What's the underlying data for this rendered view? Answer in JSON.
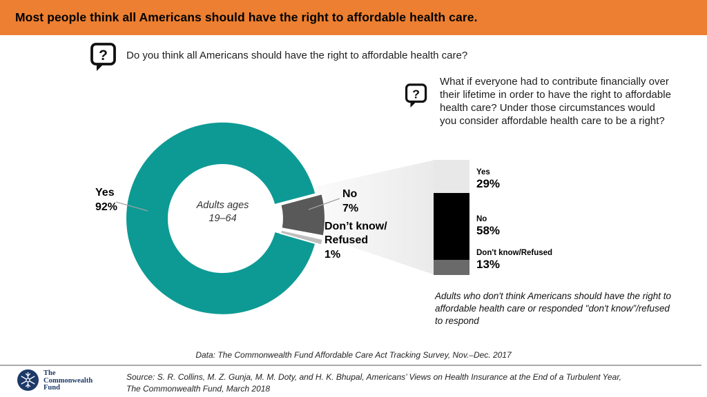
{
  "header": {
    "title": "Most people think all Americans should have the right to affordable health care.",
    "accent_color": "#EC7F31"
  },
  "questions": {
    "icon_glyph": "?",
    "q1": "Do you think all Americans should have the right to affordable health care?",
    "q2": "What if everyone had to contribute financially over their lifetime in order to have the right to affordable health care? Under those circumstances would you consider affordable health care to be a right?"
  },
  "chart_data": [
    {
      "type": "pie",
      "subtype": "donut",
      "center_line1": "Adults ages",
      "center_line2": "19–64",
      "categories": [
        "Yes",
        "No",
        "Don’t know/Refused"
      ],
      "values": [
        92,
        7,
        1
      ],
      "colors": [
        "#0D9A94",
        "#595959",
        "#BFBFBF"
      ],
      "labels": [
        "Yes 92%",
        "No 7%",
        "Don’t know/Refused 1%"
      ],
      "legend_position": "callout-labels"
    },
    {
      "type": "bar",
      "subtype": "stacked-single-column",
      "categories": [
        "Yes",
        "No",
        "Don't know/Refused"
      ],
      "values": [
        29,
        58,
        13
      ],
      "colors": [
        "#E8E8E8",
        "#000000",
        "#6A6A6A"
      ],
      "ylim": [
        0,
        100
      ],
      "grid": false,
      "legend_position": "right-labels"
    }
  ],
  "donut_labels": {
    "yes": {
      "name": "Yes",
      "value": "92%"
    },
    "no": {
      "name": "No",
      "value": "7%"
    },
    "dk": {
      "line1": "Don’t know/",
      "line2": "Refused",
      "value": "1%"
    }
  },
  "bar_labels": {
    "yes": {
      "name": "Yes",
      "value": "29%"
    },
    "no": {
      "name": "No",
      "value": "58%"
    },
    "dk": {
      "name": "Don't know/Refused",
      "value": "13%"
    }
  },
  "note": "Adults who don't think Americans should have the right to affordable health care or responded \"don't know”/refused to respond",
  "footer": {
    "data_caption": "Data: The Commonwealth Fund Affordable Care Act Tracking Survey, Nov.–Dec. 2017",
    "source_text": "Source: S. R. Collins, M. Z. Gunja, M. M. Doty, and H. K. Bhupal, Americans’ Views on Health Insurance at the End of a Turbulent Year, The Commonwealth Fund, March 2018",
    "logo": {
      "line1": "The",
      "line2": "Commonwealth",
      "line3": "Fund",
      "color": "#1C3968"
    }
  }
}
